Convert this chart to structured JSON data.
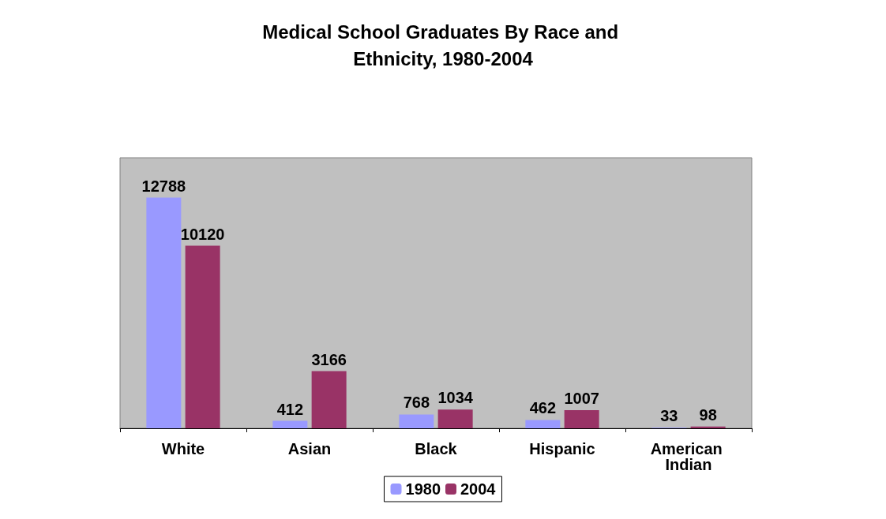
{
  "chart_data": {
    "type": "bar",
    "title": "Medical School Graduates By Race and Ethnicity, 1980-2004",
    "categories": [
      "White",
      "Asian",
      "Black",
      "Hispanic",
      "American Indian"
    ],
    "series": [
      {
        "name": "1980",
        "color": "#9999ff",
        "values": [
          12788,
          412,
          768,
          462,
          33
        ]
      },
      {
        "name": "2004",
        "color": "#993366",
        "values": [
          10120,
          3166,
          1034,
          1007,
          98
        ]
      }
    ],
    "data_labels": true,
    "legend": "bottom",
    "tick_labels": "x"
  }
}
